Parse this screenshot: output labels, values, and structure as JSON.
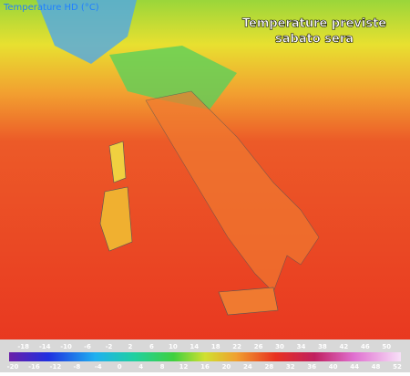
{
  "header": {
    "title": "Temperature HD (°C)"
  },
  "overlay": {
    "lines": [
      "Temperature previste",
      "sabato sera"
    ]
  },
  "colorbar": {
    "top_labels": [
      "-18",
      "-14",
      "-10",
      "-6",
      "-2",
      "2",
      "6",
      "10",
      "14",
      "18",
      "22",
      "26",
      "30",
      "34",
      "38",
      "42",
      "46",
      "50"
    ],
    "bottom_labels": [
      "-20",
      "-16",
      "-12",
      "-8",
      "-4",
      "0",
      "4",
      "8",
      "12",
      "16",
      "20",
      "24",
      "28",
      "32",
      "36",
      "40",
      "44",
      "48",
      "52"
    ]
  }
}
